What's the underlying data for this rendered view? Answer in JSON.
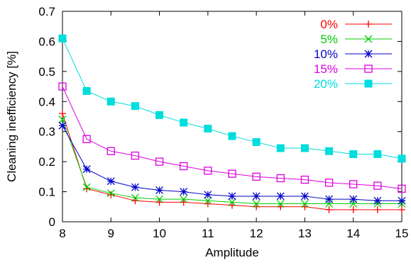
{
  "chart_data": {
    "type": "line",
    "xlabel": "Amplitude",
    "ylabel": "Cleaning inefficiency [%]",
    "xlim": [
      8,
      15
    ],
    "ylim": [
      0,
      0.7
    ],
    "xticks": [
      8,
      9,
      10,
      11,
      12,
      13,
      14,
      15
    ],
    "yticks": [
      0,
      0.1,
      0.2,
      0.3,
      0.4,
      0.5,
      0.6,
      0.7
    ],
    "grid": false,
    "legend_position": "top-right",
    "x": [
      8,
      8.5,
      9,
      9.5,
      10,
      10.5,
      11,
      11.5,
      12,
      12.5,
      13,
      13.5,
      14,
      14.5,
      15
    ],
    "series": [
      {
        "name": "0%",
        "color": "#ff0000",
        "marker": "plus",
        "values": [
          0.36,
          0.11,
          0.09,
          0.07,
          0.065,
          0.065,
          0.06,
          0.055,
          0.05,
          0.05,
          0.05,
          0.04,
          0.04,
          0.04,
          0.04
        ]
      },
      {
        "name": "5%",
        "color": "#00cc00",
        "marker": "cross",
        "values": [
          0.34,
          0.115,
          0.095,
          0.08,
          0.075,
          0.075,
          0.07,
          0.065,
          0.06,
          0.06,
          0.06,
          0.06,
          0.06,
          0.06,
          0.06
        ]
      },
      {
        "name": "10%",
        "color": "#0000cc",
        "marker": "star",
        "values": [
          0.32,
          0.175,
          0.135,
          0.115,
          0.105,
          0.1,
          0.09,
          0.085,
          0.085,
          0.085,
          0.085,
          0.075,
          0.075,
          0.07,
          0.07
        ]
      },
      {
        "name": "15%",
        "color": "#dd00dd",
        "marker": "open-square",
        "values": [
          0.45,
          0.275,
          0.235,
          0.22,
          0.2,
          0.185,
          0.17,
          0.16,
          0.15,
          0.145,
          0.14,
          0.13,
          0.125,
          0.12,
          0.11
        ]
      },
      {
        "name": "20%",
        "color": "#00dddd",
        "marker": "filled-square",
        "values": [
          0.61,
          0.435,
          0.4,
          0.385,
          0.355,
          0.33,
          0.31,
          0.285,
          0.265,
          0.245,
          0.245,
          0.235,
          0.225,
          0.225,
          0.21
        ]
      }
    ]
  }
}
